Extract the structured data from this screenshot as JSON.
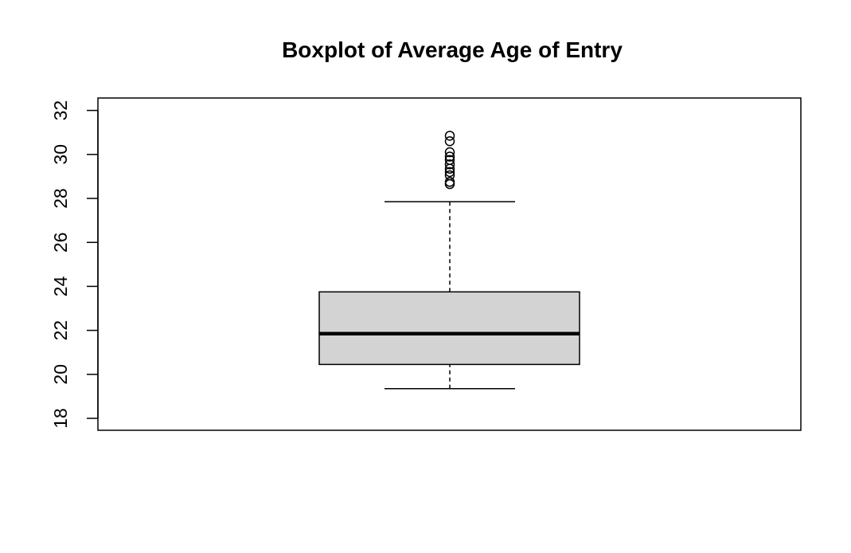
{
  "chart_data": {
    "type": "boxplot",
    "title": "Boxplot of Average Age of Entry",
    "xlabel": "",
    "ylabel": "",
    "ylim": [
      18,
      32
    ],
    "yticks": [
      18,
      20,
      22,
      24,
      26,
      28,
      30,
      32
    ],
    "grid": false,
    "legend": "none",
    "box": {
      "lower_whisker": 19.35,
      "q1": 20.45,
      "median": 21.85,
      "q3": 23.75,
      "upper_whisker": 27.85
    },
    "outliers": [
      28.65,
      28.75,
      29.05,
      29.2,
      29.35,
      29.55,
      29.75,
      29.9,
      30.1,
      30.6,
      30.85
    ],
    "colors": {
      "box_fill": "#d3d3d3",
      "line": "#000000"
    }
  }
}
